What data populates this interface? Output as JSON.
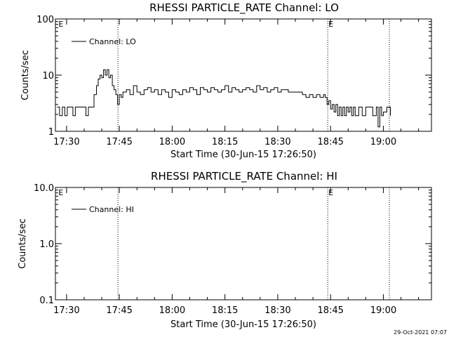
{
  "footer_timestamp": "29-Oct-2021 07:07",
  "chart_data": [
    {
      "type": "line",
      "title": "RHESSI PARTICLE_RATE Channel: LO",
      "ylabel": "Counts/sec",
      "xlabel": "Start Time (30-Jun-15 17:26:50)",
      "yscale": "log",
      "ylim": [
        1,
        100
      ],
      "y_tick_labels": [
        "1",
        "10",
        "100"
      ],
      "y_tick_values": [
        1,
        10,
        100
      ],
      "x_tick_labels": [
        "17:30",
        "17:45",
        "18:00",
        "18:15",
        "18:30",
        "18:45",
        "19:00"
      ],
      "x_tick_minutes": [
        30,
        45,
        60,
        75,
        90,
        105,
        120
      ],
      "xlim_minutes": [
        26.833,
        133.667
      ],
      "legend": {
        "label": "Channel: LO",
        "position": "top-left"
      },
      "event_markers": [
        {
          "label": "E",
          "x_minutes": 27.5
        },
        {
          "label": "E",
          "x_minutes": 104.2
        }
      ],
      "vlines_minutes": [
        44.6,
        104.2,
        121.7
      ],
      "series": [
        {
          "name": "Channel: LO",
          "x_minutes": [
            27.3,
            28,
            28.8,
            29.5,
            30.2,
            31,
            31.8,
            32.5,
            33.2,
            34,
            34.8,
            35.5,
            36.2,
            37,
            37.8,
            38.5,
            39,
            39.5,
            40,
            40.5,
            41,
            41.5,
            42,
            42.5,
            43,
            43.5,
            44,
            44.5,
            45,
            45.5,
            46,
            47,
            48,
            49,
            50,
            51,
            52,
            53,
            54,
            55,
            56,
            57,
            58,
            59,
            60,
            61,
            62,
            63,
            64,
            65,
            66,
            67,
            68,
            69,
            70,
            71,
            72,
            73,
            74,
            75,
            76,
            77,
            78,
            79,
            80,
            81,
            82,
            83,
            84,
            85,
            86,
            87,
            88,
            89,
            90,
            91,
            92,
            93,
            94,
            95,
            96,
            97,
            98,
            99,
            100,
            101,
            102,
            103,
            103.5,
            104,
            104.5,
            105,
            105.5,
            106,
            106.5,
            107,
            107.5,
            108,
            108.5,
            109,
            109.5,
            110,
            110.5,
            111,
            111.5,
            112,
            113,
            114,
            115,
            116,
            117,
            118,
            118.5,
            119,
            119.5,
            120,
            121,
            122
          ],
          "y": [
            2.7,
            1.9,
            2.7,
            1.9,
            2.7,
            2.7,
            1.9,
            2.7,
            2.7,
            2.7,
            2.7,
            1.9,
            2.7,
            2.7,
            4.5,
            6.5,
            8.5,
            10,
            9,
            12.5,
            10,
            12.5,
            9,
            10,
            6.5,
            5.5,
            4.5,
            3,
            4.5,
            4,
            5,
            5.5,
            4.5,
            6.5,
            5,
            4.5,
            5.5,
            6,
            5,
            5.5,
            4.5,
            5.5,
            5,
            4,
            5.5,
            5,
            4.5,
            5.5,
            5,
            6,
            5.5,
            4.5,
            6,
            5.5,
            5,
            6,
            5.5,
            5,
            5.5,
            6.5,
            5,
            6,
            5.5,
            5,
            5.5,
            6,
            5.5,
            5,
            6.5,
            5.5,
            6,
            5,
            5.5,
            6,
            5,
            5.5,
            5.5,
            5,
            5,
            5,
            5,
            4.5,
            4,
            4.5,
            4,
            4.5,
            4,
            4.5,
            4,
            3,
            3.5,
            2.5,
            3,
            2.2,
            3,
            1.9,
            2.7,
            1.9,
            2.7,
            1.9,
            2.7,
            2.2,
            2.7,
            1.9,
            2.7,
            1.9,
            2.7,
            1.9,
            2.7,
            2.7,
            1.9,
            2.7,
            1.2,
            2.7,
            1.9,
            2.2,
            2.7,
            1.9
          ]
        }
      ]
    },
    {
      "type": "line",
      "title": "RHESSI PARTICLE_RATE Channel: HI",
      "ylabel": "Counts/sec",
      "xlabel": "Start Time (30-Jun-15 17:26:50)",
      "yscale": "log",
      "ylim": [
        0.1,
        10
      ],
      "y_tick_labels": [
        "0.1",
        "1.0",
        "10.0"
      ],
      "y_tick_values": [
        0.1,
        1,
        10
      ],
      "x_tick_labels": [
        "17:30",
        "17:45",
        "18:00",
        "18:15",
        "18:30",
        "18:45",
        "19:00"
      ],
      "x_tick_minutes": [
        30,
        45,
        60,
        75,
        90,
        105,
        120
      ],
      "xlim_minutes": [
        26.833,
        133.667
      ],
      "legend": {
        "label": "Channel: HI",
        "position": "top-left"
      },
      "event_markers": [
        {
          "label": "E",
          "x_minutes": 27.5
        },
        {
          "label": "E",
          "x_minutes": 104.2
        }
      ],
      "vlines_minutes": [
        44.6,
        104.2,
        121.7
      ],
      "series": [
        {
          "name": "Channel: HI",
          "x_minutes": [],
          "y": []
        }
      ]
    }
  ]
}
